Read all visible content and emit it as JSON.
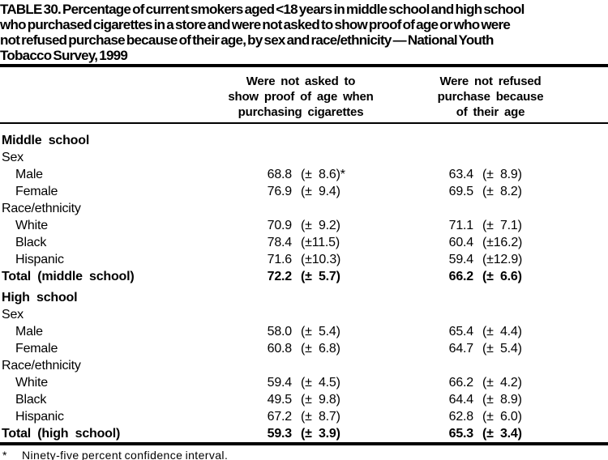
{
  "colors": {
    "text": "#000000",
    "background": "#ffffff"
  },
  "page": {
    "title_lines": [
      "TABLE 30. Percentage of current smokers aged <18 years in middle school and high school",
      "who purchased cigarettes in a store and were not asked to show proof of age or who were",
      "not refused purchase because of their age, by sex and race/ethnicity — National Youth",
      "Tobacco Survey, 1999"
    ]
  },
  "header": {
    "col1_lines": [
      "Were not asked to",
      "show proof of age when",
      "purchasing cigarettes"
    ],
    "col2_lines": [
      "Were not refused",
      "purchase because",
      "of their age"
    ]
  },
  "rows": [
    {
      "label": "Middle school",
      "v1": "",
      "ci1": "",
      "v2": "",
      "ci2": ""
    },
    {
      "label": "Sex",
      "v1": "",
      "ci1": "",
      "v2": "",
      "ci2": ""
    },
    {
      "label": "Male",
      "v1": "68.8",
      "ci1": "(± 8.6)*",
      "v2": "63.4",
      "ci2": "(± 8.9)"
    },
    {
      "label": "Female",
      "v1": "76.9",
      "ci1": "(± 9.4)",
      "v2": "69.5",
      "ci2": "(± 8.2)"
    },
    {
      "label": "Race/ethnicity",
      "v1": "",
      "ci1": "",
      "v2": "",
      "ci2": ""
    },
    {
      "label": "White",
      "v1": "70.9",
      "ci1": "(± 9.2)",
      "v2": "71.1",
      "ci2": "(± 7.1)"
    },
    {
      "label": "Black",
      "v1": "78.4",
      "ci1": "(±11.5)",
      "v2": "60.4",
      "ci2": "(±16.2)"
    },
    {
      "label": "Hispanic",
      "v1": "71.6",
      "ci1": "(±10.3)",
      "v2": "59.4",
      "ci2": "(±12.9)"
    },
    {
      "label": "Total (middle school)",
      "v1": "72.2",
      "ci1": "(± 5.7)",
      "v2": "66.2",
      "ci2": "(± 6.6)"
    },
    {
      "label": "High school",
      "v1": "",
      "ci1": "",
      "v2": "",
      "ci2": ""
    },
    {
      "label": "Sex",
      "v1": "",
      "ci1": "",
      "v2": "",
      "ci2": ""
    },
    {
      "label": "Male",
      "v1": "58.0",
      "ci1": "(± 5.4)",
      "v2": "65.4",
      "ci2": "(± 4.4)"
    },
    {
      "label": "Female",
      "v1": "60.8",
      "ci1": "(± 6.8)",
      "v2": "64.7",
      "ci2": "(± 5.4)"
    },
    {
      "label": "Race/ethnicity",
      "v1": "",
      "ci1": "",
      "v2": "",
      "ci2": ""
    },
    {
      "label": "White",
      "v1": "59.4",
      "ci1": "(± 4.5)",
      "v2": "66.2",
      "ci2": "(± 4.2)"
    },
    {
      "label": "Black",
      "v1": "49.5",
      "ci1": "(± 9.8)",
      "v2": "64.4",
      "ci2": "(± 8.9)"
    },
    {
      "label": "Hispanic",
      "v1": "67.2",
      "ci1": "(± 8.7)",
      "v2": "62.8",
      "ci2": "(± 6.0)"
    },
    {
      "label": "Total (high school)",
      "v1": "59.3",
      "ci1": "(± 3.9)",
      "v2": "65.3",
      "ci2": "(± 3.4)"
    }
  ],
  "footnote": {
    "marker": "*",
    "text": "Ninety-five percent confidence interval."
  }
}
